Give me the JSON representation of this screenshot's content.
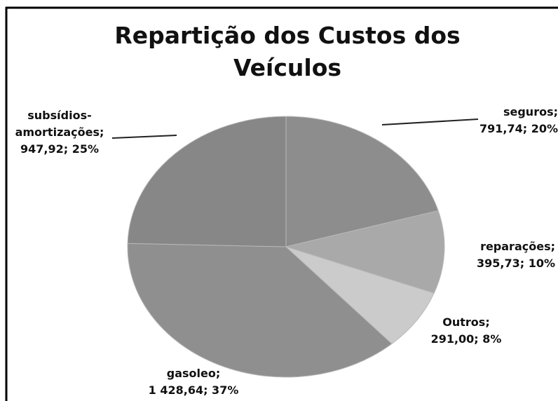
{
  "chart_data": {
    "type": "pie",
    "title": "Repartição dos Custos dos Veículos",
    "categories": [
      "seguros;",
      "reparações;",
      "Outros;",
      "gasoleo;",
      "subsídios-amortizações;"
    ],
    "values": [
      791.74,
      395.73,
      291.0,
      1428.64,
      947.92
    ],
    "value_labels": [
      "791,74; 20%",
      "395,73; 10%",
      "291,00; 8%",
      "1 428,64; 37%",
      "947,92; 25%"
    ],
    "colors": [
      "#8d8d8d",
      "#a9a9a9",
      "#cbcbcb",
      "#8f8f8f",
      "#878787"
    ]
  }
}
